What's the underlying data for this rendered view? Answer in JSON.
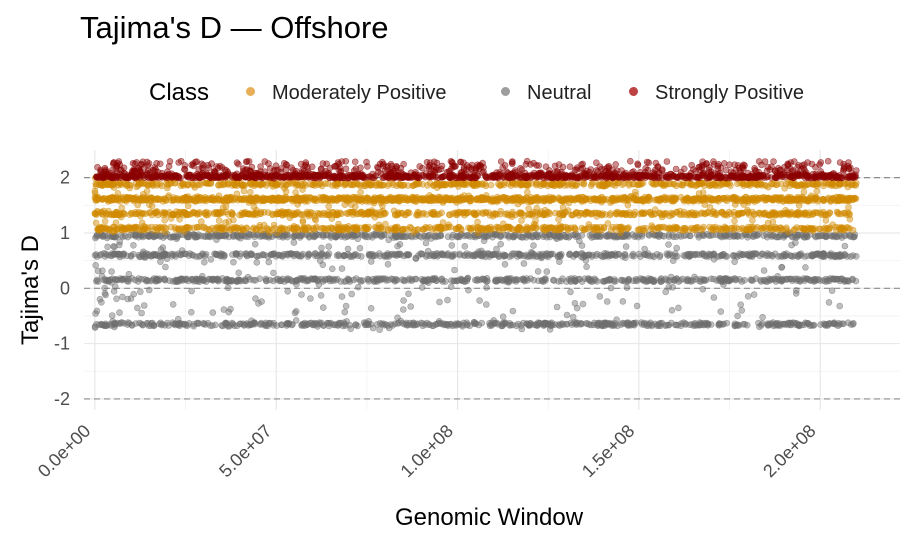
{
  "chart_data": {
    "type": "scatter",
    "title": "Tajima's D — Offshore",
    "xlabel": "Genomic Window",
    "ylabel": "Tajima's D",
    "xlim": [
      -3000000,
      222000000
    ],
    "ylim": [
      -2.2,
      2.5
    ],
    "x_ticks": [
      {
        "value": 0,
        "label": "0.0e+00"
      },
      {
        "value": 50000000,
        "label": "5.0e+07"
      },
      {
        "value": 100000000,
        "label": "1.0e+08"
      },
      {
        "value": 150000000,
        "label": "1.5e+08"
      },
      {
        "value": 200000000,
        "label": "2.0e+08"
      }
    ],
    "y_ticks": [
      {
        "value": -2,
        "label": "-2"
      },
      {
        "value": -1,
        "label": "-1"
      },
      {
        "value": 0,
        "label": "0"
      },
      {
        "value": 1,
        "label": "1"
      },
      {
        "value": 2,
        "label": "2"
      }
    ],
    "reference_lines_y": [
      -2,
      0,
      2
    ],
    "grid": true,
    "legend": {
      "title": "Class",
      "position": "top",
      "entries": [
        {
          "name": "Moderately Positive",
          "color": "#E6A23C"
        },
        {
          "name": "Neutral",
          "color": "#8C8C8C"
        },
        {
          "name": "Strongly Positive",
          "color": "#B22222"
        }
      ]
    },
    "x_range": [
      0,
      210000000
    ],
    "series": [
      {
        "name": "Moderately Positive",
        "color": "#D18A00",
        "bands_y": [
          1.08,
          1.35,
          1.6,
          1.62,
          1.88
        ],
        "y_range": [
          1.0,
          2.0
        ]
      },
      {
        "name": "Neutral",
        "color": "#6E6E6E",
        "bands_y": [
          -0.65,
          0.15,
          0.6,
          0.95
        ],
        "y_range": [
          -0.75,
          1.0
        ]
      },
      {
        "name": "Strongly Positive",
        "color": "#8B0000",
        "bands_y": [
          2.02
        ],
        "y_range": [
          2.0,
          2.3
        ]
      }
    ]
  }
}
